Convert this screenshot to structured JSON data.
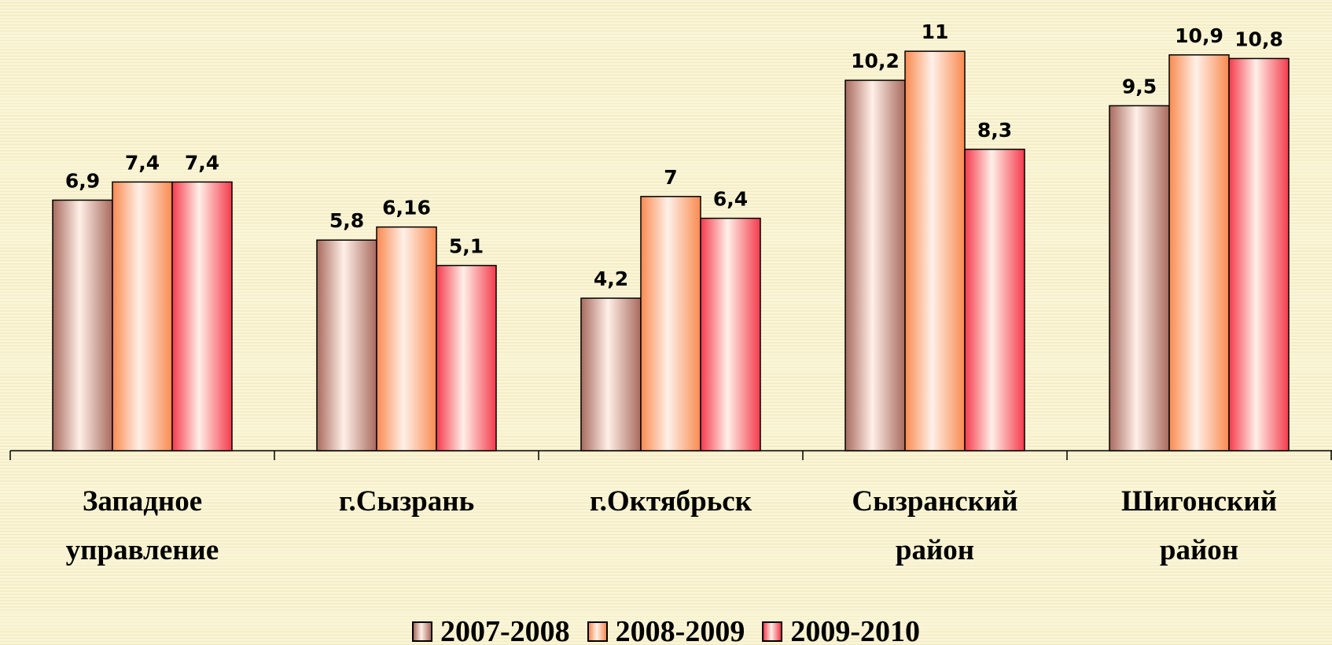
{
  "chart_data": {
    "type": "bar",
    "categories": [
      "Западное\nуправление",
      "г.Сызрань",
      "г.Октябрьск",
      "Сызранский\nрайон",
      "Шигонский\nрайон"
    ],
    "series": [
      {
        "name": "2007-2008",
        "color": "#a86a5e",
        "values": [
          6.9,
          5.8,
          4.2,
          10.2,
          9.5
        ],
        "value_labels": [
          "6,9",
          "5,8",
          "4,2",
          "10,2",
          "9,5"
        ]
      },
      {
        "name": "2008-2009",
        "color": "#f98a50",
        "values": [
          7.4,
          6.16,
          7,
          11,
          10.9
        ],
        "value_labels": [
          "7,4",
          "6,16",
          "7",
          "11",
          "10,9"
        ]
      },
      {
        "name": "2009-2010",
        "color": "#f43a4c",
        "values": [
          7.4,
          5.1,
          6.4,
          8.3,
          10.8
        ],
        "value_labels": [
          "7,4",
          "5,1",
          "6,4",
          "8,3",
          "10,8"
        ]
      }
    ],
    "ylim": [
      0,
      12
    ],
    "legend": "bottom"
  }
}
